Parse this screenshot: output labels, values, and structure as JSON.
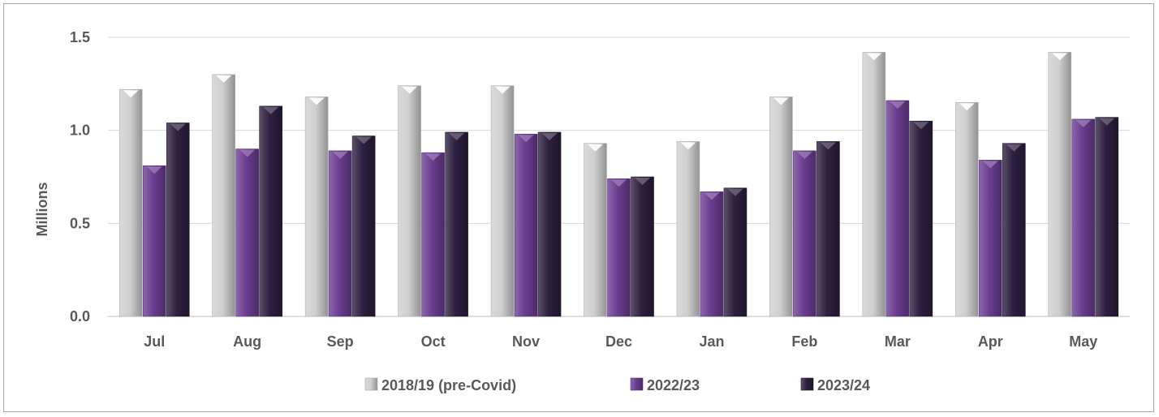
{
  "chart_data": {
    "type": "bar",
    "categories": [
      "Jul",
      "Aug",
      "Sep",
      "Oct",
      "Nov",
      "Dec",
      "Jan",
      "Feb",
      "Mar",
      "Apr",
      "May"
    ],
    "series": [
      {
        "name": "2018/19 (pre-Covid)",
        "color": "#d0d0d0",
        "values": [
          1.22,
          1.3,
          1.18,
          1.24,
          1.24,
          0.93,
          0.94,
          1.18,
          1.42,
          1.15,
          1.42
        ]
      },
      {
        "name": "2022/23",
        "color": "#6b3d91",
        "values": [
          0.81,
          0.9,
          0.89,
          0.88,
          0.98,
          0.74,
          0.67,
          0.89,
          1.16,
          0.84,
          1.06
        ]
      },
      {
        "name": "2023/24",
        "color": "#2e1f3f",
        "values": [
          1.04,
          1.13,
          0.97,
          0.99,
          0.99,
          0.75,
          0.69,
          0.94,
          1.05,
          0.93,
          1.07
        ]
      }
    ],
    "ylabel": "Millions",
    "xlabel": "",
    "ylim": [
      0,
      1.5
    ],
    "yticks": [
      "0.0",
      "0.5",
      "1.0",
      "1.5"
    ],
    "grid": true,
    "legend_position": "bottom"
  }
}
